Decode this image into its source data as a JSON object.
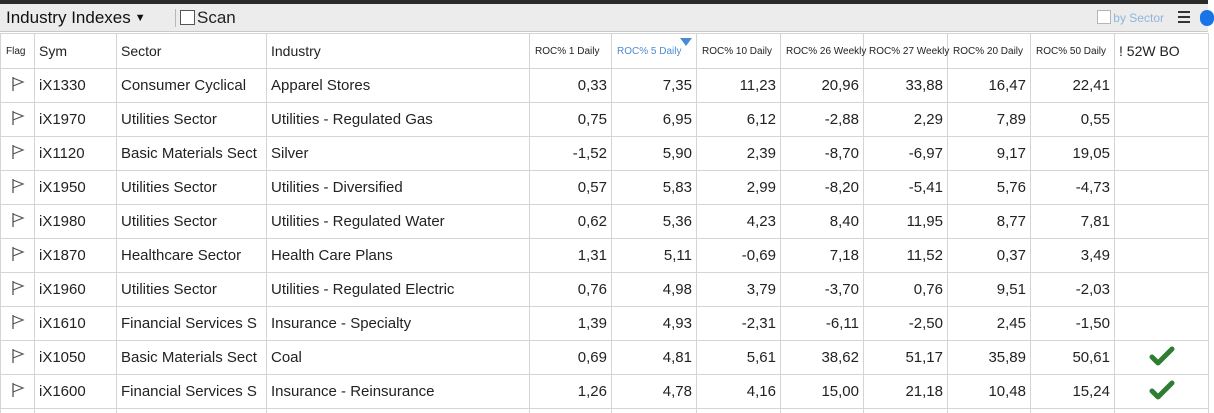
{
  "toolbar": {
    "view_label": "Industry Indexes",
    "scan_label": "Scan",
    "by_sector_label": "by Sector"
  },
  "colors": {
    "header_active": "#4a8bd3",
    "check": "#2e7d32",
    "toolbar_bg": "#ececec"
  },
  "columns": [
    "Flag",
    "Sym",
    "Sector",
    "Industry",
    "ROC% 1 Daily",
    "ROC% 5 Daily",
    "ROC% 10 Daily",
    "ROC% 26 Weekly",
    "ROC% 27 Weekly",
    "ROC% 20 Daily",
    "ROC% 50 Daily",
    "! 52W BO"
  ],
  "sort": {
    "column": "ROC% 5 Daily",
    "direction": "descending"
  },
  "rows": [
    {
      "sym": "iX1330",
      "sector": "Consumer Cyclical",
      "industry": "Apparel Stores",
      "roc1": "0,33",
      "roc5": "7,35",
      "roc10": "11,23",
      "roc26w": "20,96",
      "roc27w": "33,88",
      "roc20": "16,47",
      "roc50": "22,41",
      "bo": false
    },
    {
      "sym": "iX1970",
      "sector": "Utilities Sector",
      "industry": "Utilities - Regulated Gas",
      "roc1": "0,75",
      "roc5": "6,95",
      "roc10": "6,12",
      "roc26w": "-2,88",
      "roc27w": "2,29",
      "roc20": "7,89",
      "roc50": "0,55",
      "bo": false
    },
    {
      "sym": "iX1120",
      "sector": "Basic Materials Sect",
      "industry": "Silver",
      "roc1": "-1,52",
      "roc5": "5,90",
      "roc10": "2,39",
      "roc26w": "-8,70",
      "roc27w": "-6,97",
      "roc20": "9,17",
      "roc50": "19,05",
      "bo": false
    },
    {
      "sym": "iX1950",
      "sector": "Utilities Sector",
      "industry": "Utilities - Diversified",
      "roc1": "0,57",
      "roc5": "5,83",
      "roc10": "2,99",
      "roc26w": "-8,20",
      "roc27w": "-5,41",
      "roc20": "5,76",
      "roc50": "-4,73",
      "bo": false
    },
    {
      "sym": "iX1980",
      "sector": "Utilities Sector",
      "industry": "Utilities - Regulated Water",
      "roc1": "0,62",
      "roc5": "5,36",
      "roc10": "4,23",
      "roc26w": "8,40",
      "roc27w": "11,95",
      "roc20": "8,77",
      "roc50": "7,81",
      "bo": false
    },
    {
      "sym": "iX1870",
      "sector": "Healthcare Sector",
      "industry": "Health Care Plans",
      "roc1": "1,31",
      "roc5": "5,11",
      "roc10": "-0,69",
      "roc26w": "7,18",
      "roc27w": "11,52",
      "roc20": "0,37",
      "roc50": "3,49",
      "bo": false
    },
    {
      "sym": "iX1960",
      "sector": "Utilities Sector",
      "industry": "Utilities - Regulated Electric",
      "roc1": "0,76",
      "roc5": "4,98",
      "roc10": "3,79",
      "roc26w": "-3,70",
      "roc27w": "0,76",
      "roc20": "9,51",
      "roc50": "-2,03",
      "bo": false
    },
    {
      "sym": "iX1610",
      "sector": "Financial Services S",
      "industry": "Insurance - Specialty",
      "roc1": "1,39",
      "roc5": "4,93",
      "roc10": "-2,31",
      "roc26w": "-6,11",
      "roc27w": "-2,50",
      "roc20": "2,45",
      "roc50": "-1,50",
      "bo": false
    },
    {
      "sym": "iX1050",
      "sector": "Basic Materials Sect",
      "industry": "Coal",
      "roc1": "0,69",
      "roc5": "4,81",
      "roc10": "5,61",
      "roc26w": "38,62",
      "roc27w": "51,17",
      "roc20": "35,89",
      "roc50": "50,61",
      "bo": true
    },
    {
      "sym": "iX1600",
      "sector": "Financial Services S",
      "industry": "Insurance - Reinsurance",
      "roc1": "1,26",
      "roc5": "4,78",
      "roc10": "4,16",
      "roc26w": "15,00",
      "roc27w": "21,18",
      "roc20": "10,48",
      "roc50": "15,24",
      "bo": true
    }
  ]
}
